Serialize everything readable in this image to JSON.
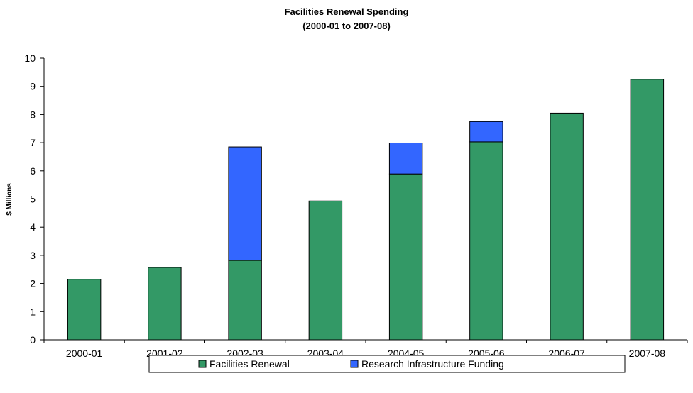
{
  "chart_data": {
    "type": "bar",
    "stacked": true,
    "title": "Facilities Renewal Spending",
    "subtitle": "(2000-01 to 2007-08)",
    "xlabel": "",
    "ylabel": "$ Millions",
    "ylim": [
      0,
      10
    ],
    "yticks": [
      "0",
      "1",
      "2",
      "3",
      "4",
      "5",
      "6",
      "7",
      "8",
      "9",
      "10"
    ],
    "grid": false,
    "legend_position": "bottom",
    "categories": [
      "2000-01",
      "2001-02",
      "2002-03",
      "2003-04",
      "2004-05",
      "2005-06",
      "2006-07",
      "2007-08"
    ],
    "series": [
      {
        "name": "Facilities Renewal",
        "color": "#339966",
        "values": [
          2.15,
          2.57,
          2.82,
          4.93,
          5.89,
          7.03,
          8.05,
          9.25
        ]
      },
      {
        "name": "Research Infrastructure Funding",
        "color": "#3366FF",
        "values": [
          0,
          0,
          4.03,
          0,
          1.1,
          0.72,
          0,
          0
        ]
      }
    ]
  }
}
